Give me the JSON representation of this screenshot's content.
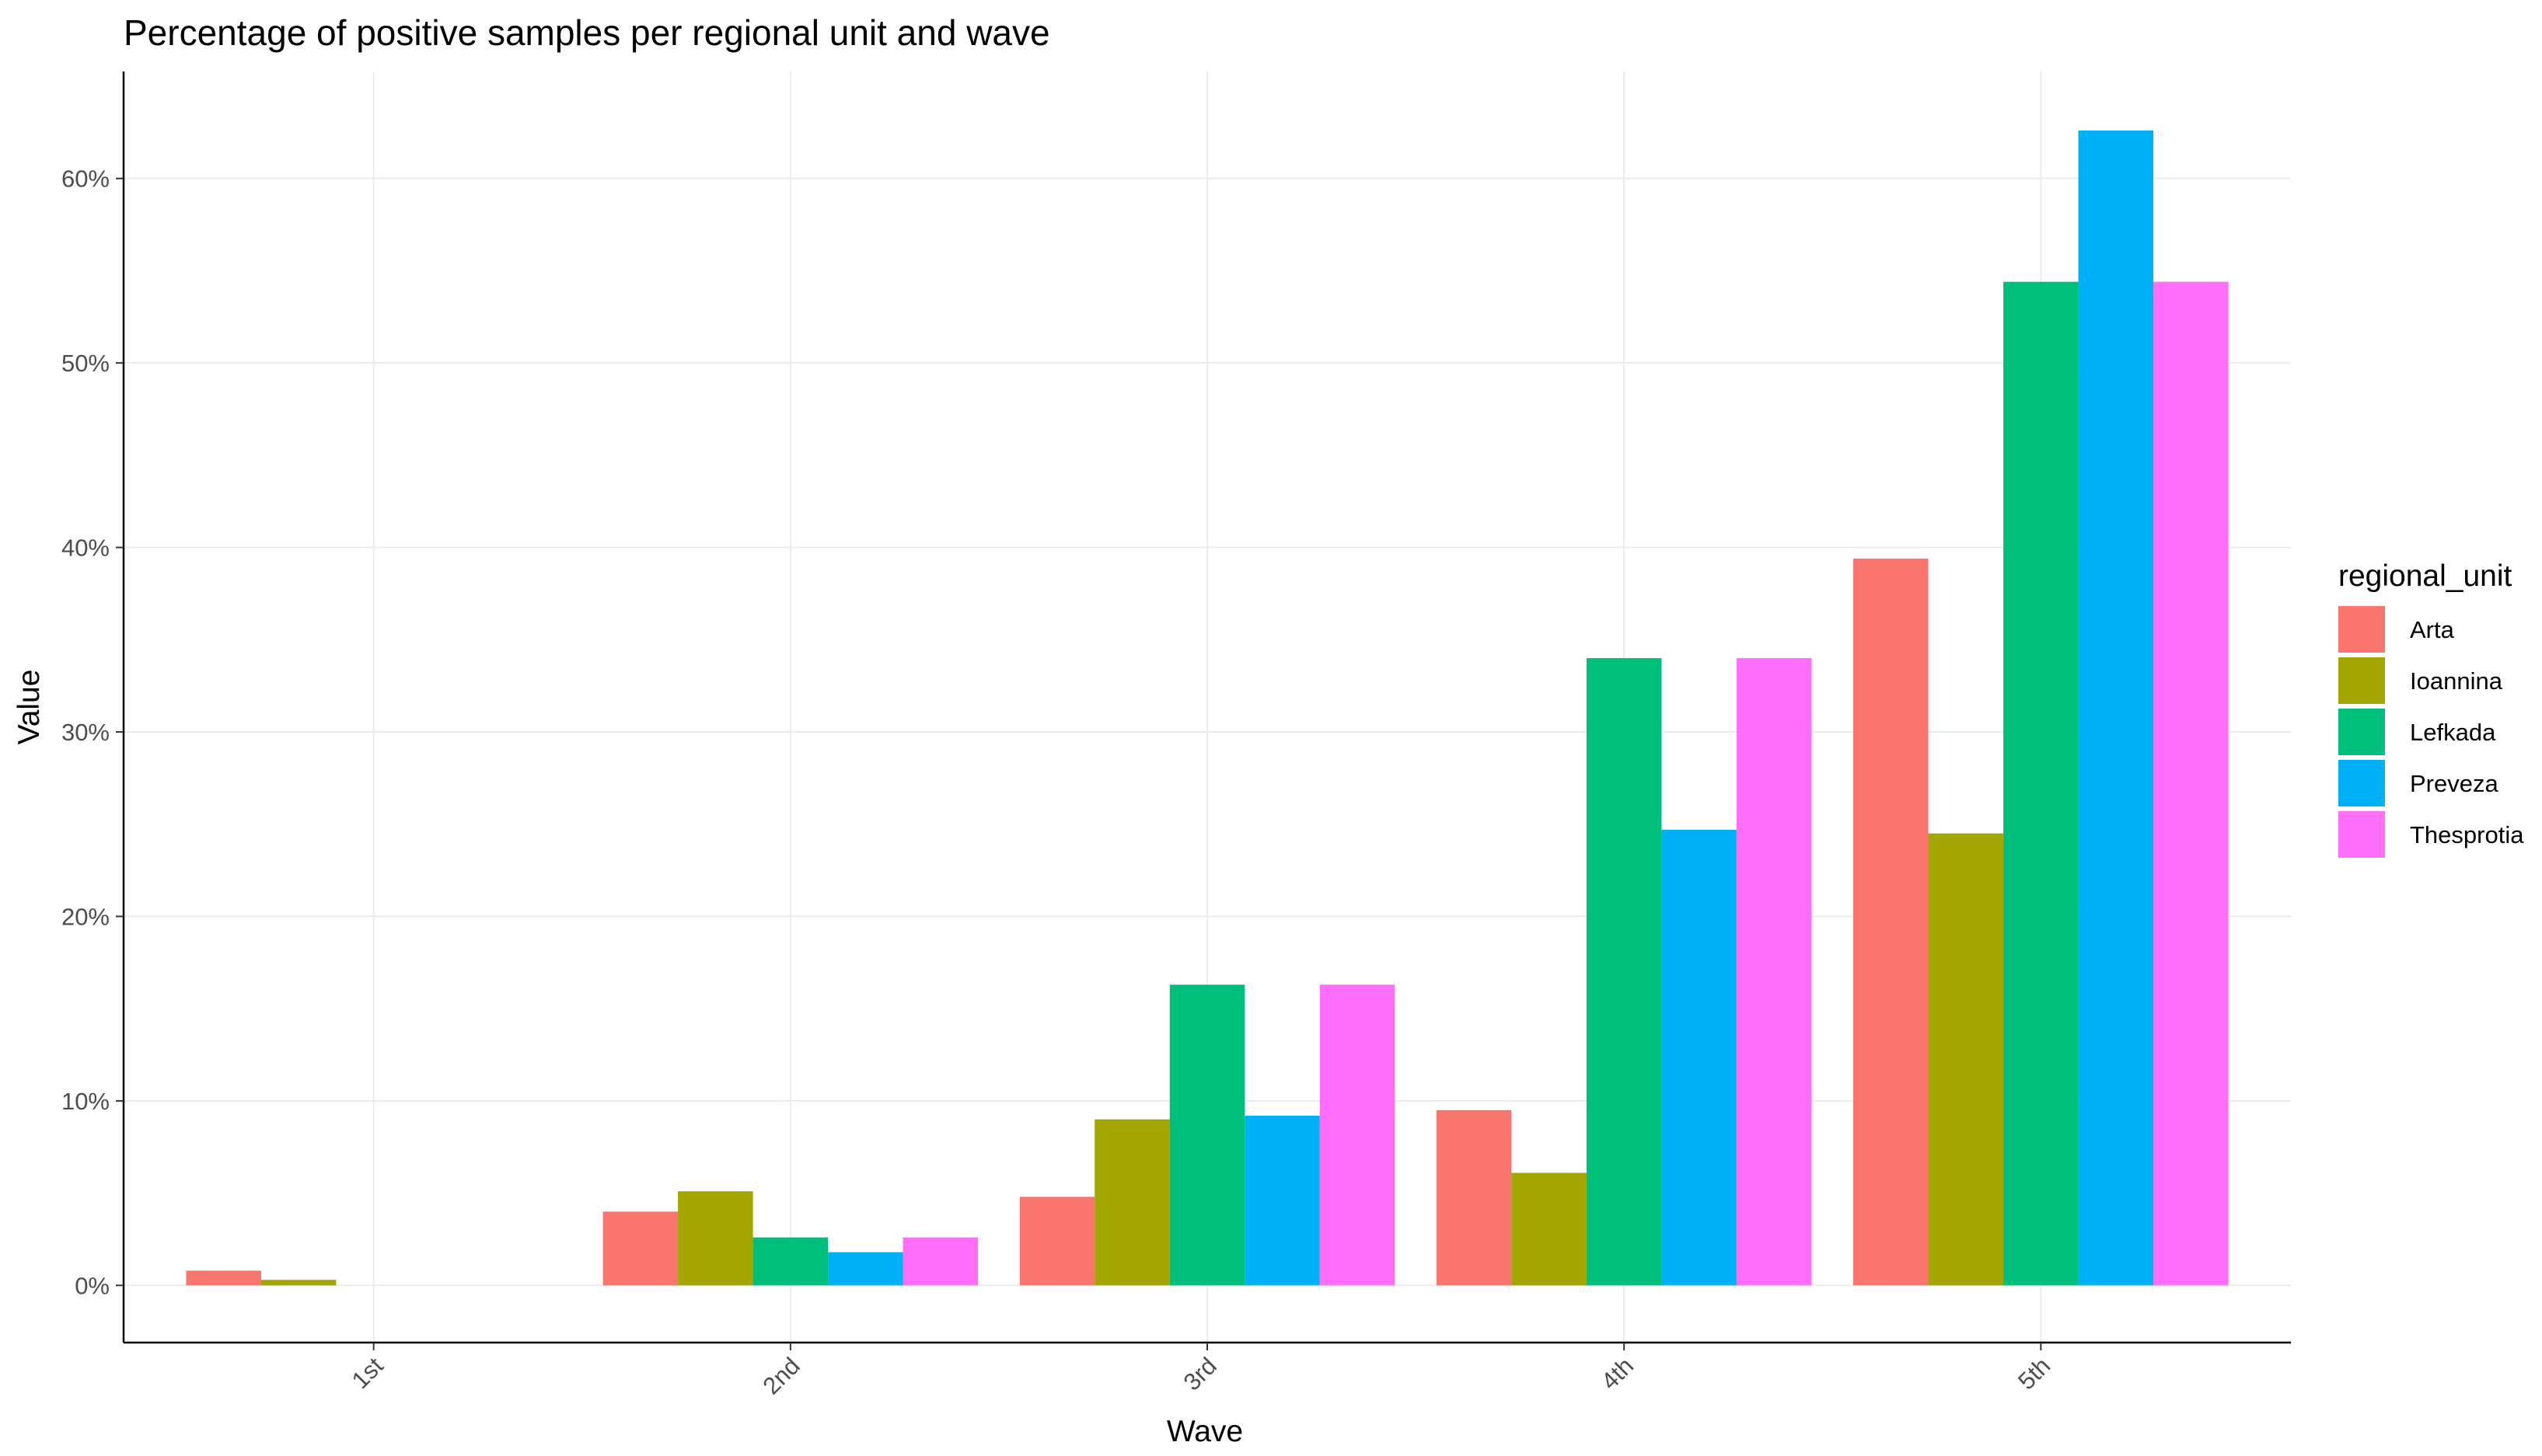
{
  "chart_data": {
    "type": "bar",
    "title": "Percentage of positive samples per regional unit and wave",
    "xlabel": "Wave",
    "ylabel": "Value",
    "categories": [
      "1st",
      "2nd",
      "3rd",
      "4th",
      "5th"
    ],
    "series": [
      {
        "name": "Arta",
        "color": "#F8766D",
        "values": [
          0.8,
          4.0,
          4.8,
          9.5,
          39.4
        ]
      },
      {
        "name": "Ioannina",
        "color": "#A3A500",
        "values": [
          0.3,
          5.1,
          9.0,
          6.1,
          24.5
        ]
      },
      {
        "name": "Lefkada",
        "color": "#00BF7D",
        "values": [
          0,
          2.6,
          16.3,
          34.0,
          54.4
        ]
      },
      {
        "name": "Preveza",
        "color": "#00B0F6",
        "values": [
          0,
          1.8,
          9.2,
          24.7,
          62.6
        ]
      },
      {
        "name": "Thesprotia",
        "color": "#FF6EF9",
        "values": [
          0,
          2.6,
          16.3,
          34.0,
          54.4
        ]
      }
    ],
    "ylim": [
      -3.1,
      65.8
    ],
    "yticks": [
      0,
      10,
      20,
      30,
      40,
      50,
      60
    ],
    "ytick_labels": [
      "0%",
      "10%",
      "20%",
      "30%",
      "40%",
      "50%",
      "60%"
    ],
    "grid": true,
    "legend": {
      "title": "regional_unit",
      "position": "right"
    }
  }
}
